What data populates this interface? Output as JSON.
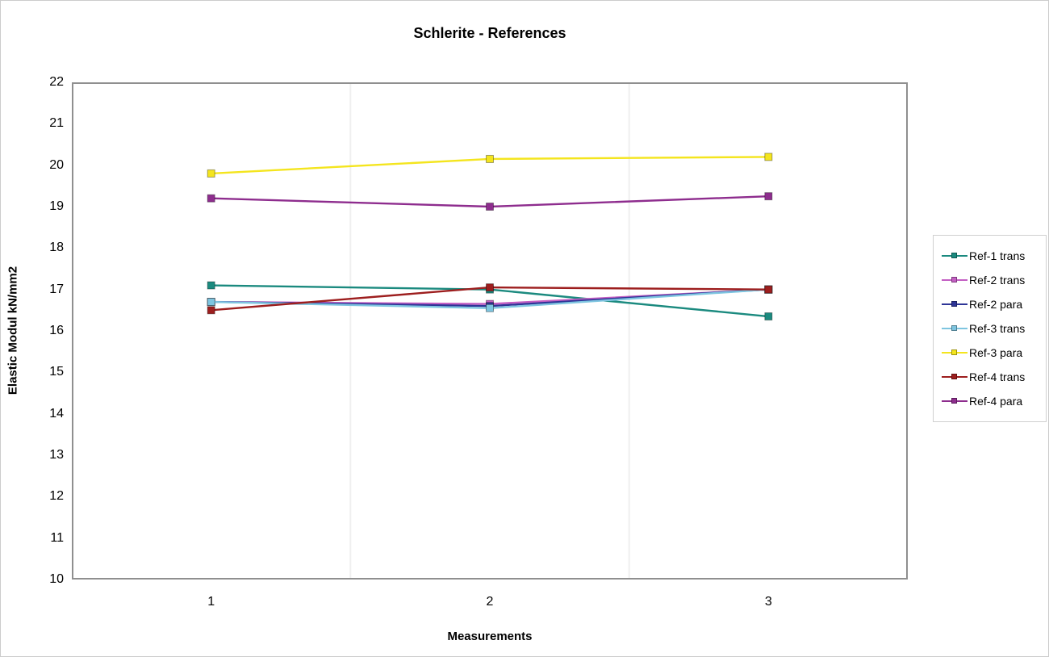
{
  "chart_data": {
    "type": "line",
    "title": "Schlerite - References",
    "xlabel": "Measurements",
    "ylabel": "Elastic Modul kN/mm2",
    "categories": [
      "1",
      "2",
      "3"
    ],
    "ylim": [
      10,
      22
    ],
    "y_tick_step": 1,
    "grid": "faint vertical gridlines at category boundaries only",
    "legend_position": "right",
    "plot_background": "#ffffff",
    "plot_border_color": "#8f8f8f",
    "grid_color": "#efefef",
    "series": [
      {
        "name": "Ref-1 trans",
        "color": "#1b8a7f",
        "values": [
          17.1,
          17.0,
          16.35
        ]
      },
      {
        "name": "Ref-2 trans",
        "color": "#c35fc3",
        "values": [
          16.7,
          16.65,
          17.0
        ]
      },
      {
        "name": "Ref-2 para",
        "color": "#2e3597",
        "values": [
          16.7,
          16.6,
          17.0
        ]
      },
      {
        "name": "Ref-3 trans",
        "color": "#7ec5e0",
        "values": [
          16.7,
          16.55,
          17.0
        ]
      },
      {
        "name": "Ref-3 para",
        "color": "#f4e51e",
        "values": [
          19.8,
          20.15,
          20.2
        ]
      },
      {
        "name": "Ref-4 trans",
        "color": "#9d1e1e",
        "values": [
          16.5,
          17.05,
          17.0
        ]
      },
      {
        "name": "Ref-4 para",
        "color": "#8e2d8e",
        "values": [
          19.2,
          19.0,
          19.25
        ]
      }
    ]
  }
}
